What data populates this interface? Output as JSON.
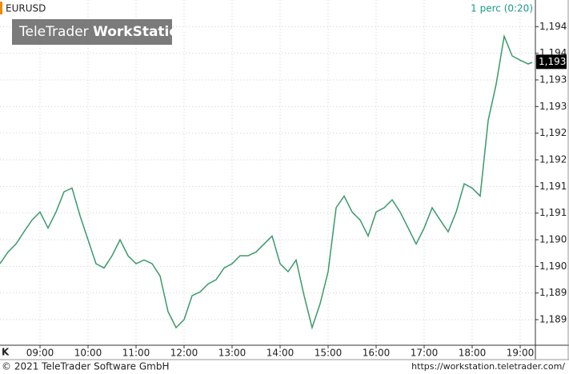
{
  "chart_data": {
    "type": "line",
    "symbol": "EURUSD",
    "interval": "1 perc (0:20)",
    "logo": {
      "brand": "TeleTrader",
      "product": "WorkStation"
    },
    "corner_label": "K",
    "copyright": "© 2021 TeleTrader Software GmbH",
    "url": "https://workstation.teletrader.com/",
    "last_price": {
      "value": 1.19334,
      "label": "1,193"
    },
    "x": [
      490,
      500,
      510,
      520,
      530,
      540,
      550,
      560,
      570,
      580,
      590,
      600,
      610,
      620,
      630,
      640,
      650,
      660,
      670,
      680,
      690,
      700,
      710,
      720,
      730,
      740,
      750,
      760,
      770,
      780,
      790,
      800,
      810,
      820,
      830,
      840,
      850,
      860,
      870,
      880,
      890,
      900,
      910,
      920,
      930,
      940,
      950,
      960,
      970,
      980,
      990,
      1000,
      1010,
      1020,
      1030,
      1040,
      1050,
      1060,
      1070,
      1080,
      1090,
      1100,
      1110,
      1120,
      1130,
      1140,
      1150,
      1155
    ],
    "series": [
      {
        "name": "EURUSD",
        "color": "#3a9a6a",
        "values": [
          1.18955,
          1.18977,
          1.18992,
          1.19015,
          1.19037,
          1.19052,
          1.19022,
          1.19052,
          1.1909,
          1.19097,
          1.19045,
          1.19,
          1.18955,
          1.18947,
          1.1897,
          1.19,
          1.1897,
          1.18955,
          1.18962,
          1.18955,
          1.18932,
          1.18865,
          1.18835,
          1.1885,
          1.18895,
          1.18902,
          1.18917,
          1.18925,
          1.18947,
          1.18955,
          1.1897,
          1.1897,
          1.18977,
          1.18992,
          1.19007,
          1.18955,
          1.1894,
          1.18962,
          1.18895,
          1.18835,
          1.1888,
          1.1894,
          1.1906,
          1.19082,
          1.19052,
          1.19037,
          1.19007,
          1.19052,
          1.1906,
          1.19075,
          1.19052,
          1.19022,
          1.18992,
          1.19022,
          1.1906,
          1.19037,
          1.19015,
          1.19052,
          1.19105,
          1.19097,
          1.19082,
          1.19224,
          1.19292,
          1.19382,
          1.19345,
          1.19337,
          1.1933,
          1.19333
        ]
      }
    ],
    "xlim": [
      490,
      1159
    ],
    "xticks": [
      {
        "value": 540,
        "label": "09:00"
      },
      {
        "value": 600,
        "label": "10:00"
      },
      {
        "value": 660,
        "label": "11:00"
      },
      {
        "value": 720,
        "label": "12:00"
      },
      {
        "value": 780,
        "label": "13:00"
      },
      {
        "value": 840,
        "label": "14:00"
      },
      {
        "value": 900,
        "label": "15:00"
      },
      {
        "value": 960,
        "label": "16:00"
      },
      {
        "value": 1020,
        "label": "17:00"
      },
      {
        "value": 1080,
        "label": "18:00"
      },
      {
        "value": 1140,
        "label": "19:00"
      }
    ],
    "ylim": [
      1.18802,
      1.1945
    ],
    "yticks": [
      {
        "value": 1.194,
        "label": "1,194"
      },
      {
        "value": 1.1935,
        "label": "1,194"
      },
      {
        "value": 1.193,
        "label": "1,193"
      },
      {
        "value": 1.1925,
        "label": "1,193"
      },
      {
        "value": 1.192,
        "label": "1,192"
      },
      {
        "value": 1.1915,
        "label": "1,192"
      },
      {
        "value": 1.191,
        "label": "1,191"
      },
      {
        "value": 1.1905,
        "label": "1,191"
      },
      {
        "value": 1.19,
        "label": "1,190"
      },
      {
        "value": 1.1895,
        "label": "1,190"
      },
      {
        "value": 1.189,
        "label": "1,189"
      },
      {
        "value": 1.1885,
        "label": "1,189"
      }
    ],
    "grid": true
  }
}
